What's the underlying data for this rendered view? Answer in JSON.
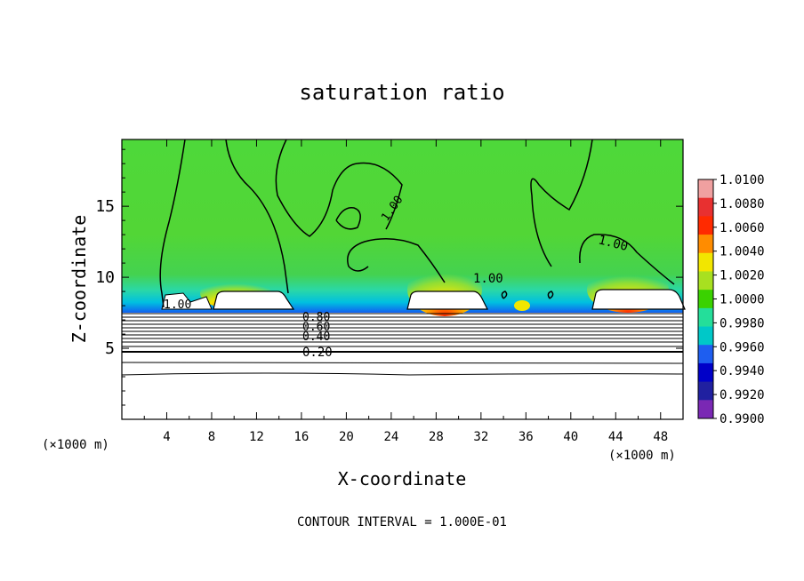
{
  "chart_data": {
    "type": "heatmap",
    "title": "saturation ratio",
    "xlabel": "X-coordinate",
    "ylabel": "Z-coordinate",
    "x_unit_left": "(×1000 m)",
    "x_unit_right": "(×1000 m)",
    "xlim": [
      0,
      50
    ],
    "ylim": [
      0,
      19.7
    ],
    "x_ticks": [
      "4",
      "8",
      "12",
      "16",
      "20",
      "24",
      "28",
      "32",
      "36",
      "40",
      "44",
      "48"
    ],
    "y_ticks": [
      "5",
      "10",
      "15"
    ],
    "colorbar": {
      "labels": [
        "1.0100",
        "1.0080",
        "1.0060",
        "1.0040",
        "1.0020",
        "1.0000",
        "0.9980",
        "0.9960",
        "0.9940",
        "0.9920",
        "0.9900"
      ],
      "colors": [
        "#f0a0a0",
        "#e83030",
        "#ff2a00",
        "#ff8c00",
        "#f2e600",
        "#a8e020",
        "#3ad200",
        "#24de9a",
        "#00c8c8",
        "#1e5ef0",
        "#0000c8",
        "#2020a0",
        "#7a28b4"
      ]
    },
    "contour_labels": [
      "1.00",
      "1.00",
      "1.00",
      "1.00",
      "0.80",
      "0.60",
      "0.40",
      "0.20"
    ],
    "footer": "CONTOUR INTERVAL = 1.000E-01"
  }
}
